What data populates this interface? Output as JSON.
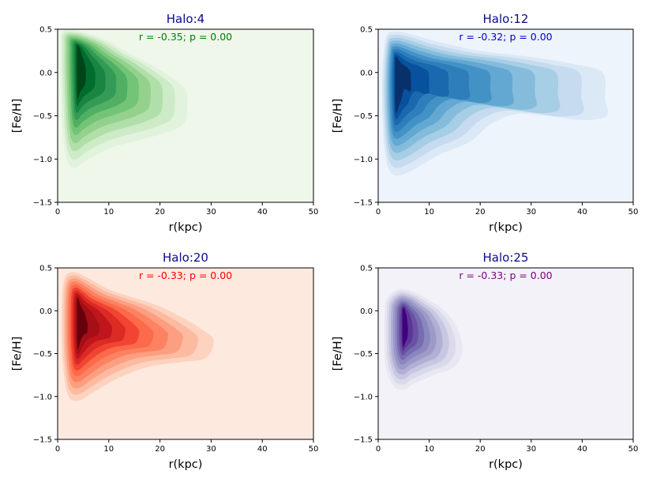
{
  "chart_data": [
    {
      "type": "contour",
      "title": "Halo:4",
      "annotation": "r = -0.35; p = 0.00",
      "annotation_color": "#008000",
      "xlabel": "r(kpc)",
      "ylabel": "[Fe/H]",
      "xlim": [
        0,
        50
      ],
      "ylim": [
        -1.5,
        0.5
      ],
      "xticks": [
        "0",
        "10",
        "20",
        "30",
        "40",
        "50"
      ],
      "yticks": [
        "−1.5",
        "−1.0",
        "−0.5",
        "0.0",
        "0.5"
      ],
      "colormap": "Greens",
      "background": "#eef7ea",
      "palette": [
        "#e1f3dc",
        "#cdebc6",
        "#b1dfaa",
        "#93d18d",
        "#73c476",
        "#50af63",
        "#339b55",
        "#1a8542",
        "#006d2c",
        "#00441b"
      ],
      "peak": [
        4,
        0.2
      ],
      "outer_contour": [
        [
          0.8,
          0.47
        ],
        [
          3,
          0.49
        ],
        [
          6,
          0.45
        ],
        [
          10,
          0.36
        ],
        [
          14,
          0.22
        ],
        [
          18,
          0.1
        ],
        [
          22,
          -0.05
        ],
        [
          25,
          -0.2
        ],
        [
          25.3,
          -0.45
        ],
        [
          24.5,
          -0.6
        ],
        [
          21,
          -0.7
        ],
        [
          16,
          -0.78
        ],
        [
          11,
          -0.86
        ],
        [
          6,
          -1.0
        ],
        [
          3.5,
          -1.1
        ],
        [
          2,
          -1.04
        ],
        [
          1.2,
          -0.8
        ],
        [
          0.8,
          -0.4
        ],
        [
          0.6,
          0.0
        ],
        [
          0.6,
          0.3
        ]
      ]
    },
    {
      "type": "contour",
      "title": "Halo:12",
      "annotation": "r = -0.32; p = 0.00",
      "annotation_color": "#0000cd",
      "xlabel": "r(kpc)",
      "ylabel": "[Fe/H]",
      "xlim": [
        0,
        50
      ],
      "ylim": [
        -1.5,
        0.5
      ],
      "xticks": [
        "0",
        "10",
        "20",
        "30",
        "40",
        "50"
      ],
      "yticks": [
        "−1.5",
        "−1.0",
        "−0.5",
        "0.0",
        "0.5"
      ],
      "colormap": "Blues",
      "background": "#edf4fc",
      "palette": [
        "#dbe9f6",
        "#c6dbef",
        "#a6cee4",
        "#85bcdc",
        "#63a8d3",
        "#4292c6",
        "#2f7ebc",
        "#1a68ae",
        "#08519c",
        "#08306b"
      ],
      "peak": [
        3.5,
        0.0
      ],
      "outer_contour": [
        [
          1.5,
          0.4
        ],
        [
          3,
          0.47
        ],
        [
          6,
          0.45
        ],
        [
          12,
          0.35
        ],
        [
          20,
          0.25
        ],
        [
          30,
          0.18
        ],
        [
          38,
          0.1
        ],
        [
          44,
          0.0
        ],
        [
          44.5,
          -0.3
        ],
        [
          44.8,
          -0.5
        ],
        [
          40,
          -0.55
        ],
        [
          33,
          -0.5
        ],
        [
          27,
          -0.48
        ],
        [
          22,
          -0.6
        ],
        [
          18,
          -0.8
        ],
        [
          12,
          -0.95
        ],
        [
          6,
          -1.15
        ],
        [
          3,
          -1.18
        ],
        [
          1.5,
          -1.0
        ],
        [
          0.8,
          -0.5
        ],
        [
          0.8,
          0.0
        ]
      ]
    },
    {
      "type": "contour",
      "title": "Halo:20",
      "annotation": "r = -0.33; p = 0.00",
      "annotation_color": "#ff0000",
      "xlabel": "r(kpc)",
      "ylabel": "[Fe/H]",
      "xlim": [
        0,
        50
      ],
      "ylim": [
        -1.5,
        0.5
      ],
      "xticks": [
        "0",
        "10",
        "20",
        "30",
        "40",
        "50"
      ],
      "yticks": [
        "−1.5",
        "−1.0",
        "−0.5",
        "0.0",
        "0.5"
      ],
      "colormap": "Reds",
      "background": "#fee9df",
      "palette": [
        "#fdd2bf",
        "#fcbba1",
        "#fc9f81",
        "#fc8262",
        "#fb6a4a",
        "#f14432",
        "#dc2a25",
        "#c0151c",
        "#a50f15",
        "#67000d"
      ],
      "peak": [
        4,
        -0.05
      ],
      "outer_contour": [
        [
          1.2,
          0.35
        ],
        [
          3,
          0.45
        ],
        [
          6,
          0.38
        ],
        [
          10,
          0.25
        ],
        [
          15,
          0.15
        ],
        [
          20,
          0.05
        ],
        [
          25,
          -0.1
        ],
        [
          29,
          -0.25
        ],
        [
          30.5,
          -0.35
        ],
        [
          29,
          -0.55
        ],
        [
          24,
          -0.6
        ],
        [
          18,
          -0.65
        ],
        [
          12,
          -0.78
        ],
        [
          7,
          -0.95
        ],
        [
          4,
          -1.05
        ],
        [
          2,
          -0.98
        ],
        [
          1,
          -0.6
        ],
        [
          0.8,
          -0.1
        ]
      ]
    },
    {
      "type": "contour",
      "title": "Halo:25",
      "annotation": "r = -0.33; p = 0.00",
      "annotation_color": "#800080",
      "xlabel": "r(kpc)",
      "ylabel": "[Fe/H]",
      "xlim": [
        0,
        50
      ],
      "ylim": [
        -1.5,
        0.5
      ],
      "xticks": [
        "0",
        "10",
        "20",
        "30",
        "40",
        "50"
      ],
      "yticks": [
        "−1.5",
        "−1.0",
        "−0.5",
        "0.0",
        "0.5"
      ],
      "colormap": "Purples",
      "background": "#f3f2f8",
      "palette": [
        "#e8e7f2",
        "#dadaeb",
        "#c6c7e1",
        "#b1afd4",
        "#9e9ac8",
        "#8a87bf",
        "#776cb1",
        "#6a51a3",
        "#5c3597",
        "#3f007d"
      ],
      "peak": [
        5,
        -0.1
      ],
      "outer_contour": [
        [
          1.8,
          0.15
        ],
        [
          4,
          0.25
        ],
        [
          7,
          0.22
        ],
        [
          10,
          0.12
        ],
        [
          13,
          0.0
        ],
        [
          15.5,
          -0.2
        ],
        [
          16.5,
          -0.45
        ],
        [
          15,
          -0.65
        ],
        [
          11,
          -0.75
        ],
        [
          7,
          -0.85
        ],
        [
          5,
          -0.92
        ],
        [
          3,
          -0.88
        ],
        [
          1.5,
          -0.65
        ],
        [
          1.2,
          -0.3
        ],
        [
          1.3,
          0.0
        ]
      ]
    }
  ]
}
